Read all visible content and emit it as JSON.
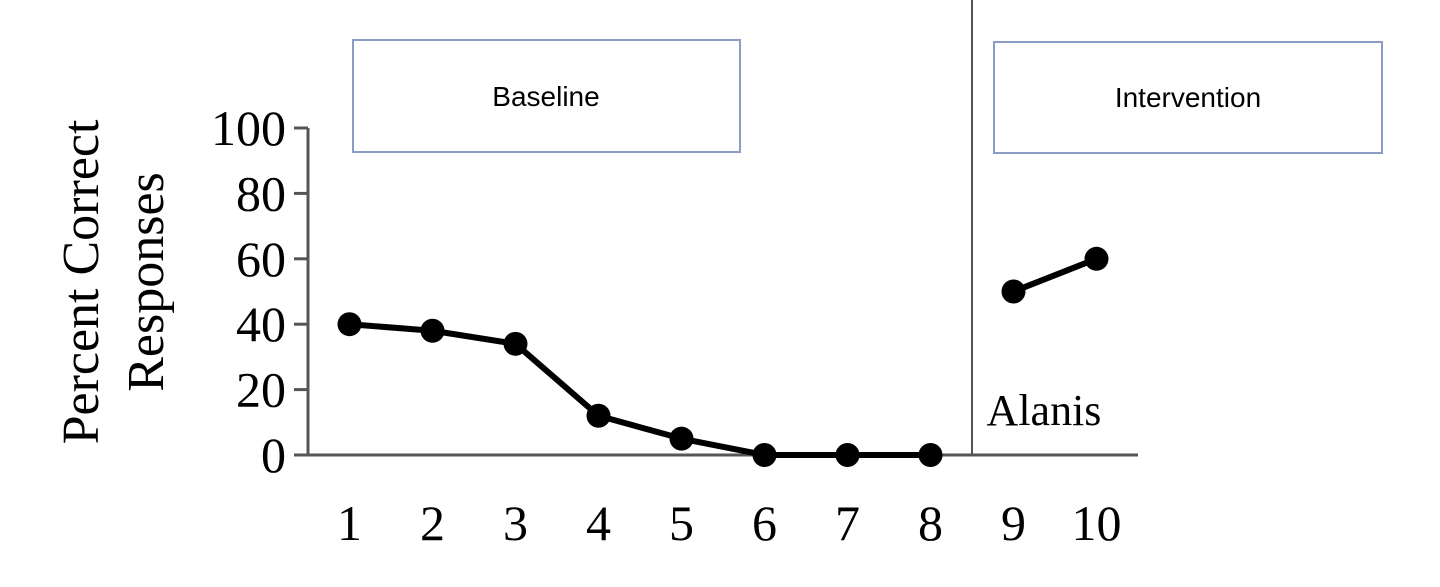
{
  "chart_data": {
    "type": "line",
    "ylabel_line1": "Percent Correct",
    "ylabel_line2": "Responses",
    "xlim": [
      0.5,
      10.5
    ],
    "ylim": [
      0,
      100
    ],
    "y_ticks": [
      0,
      20,
      40,
      60,
      80,
      100
    ],
    "x_ticks": [
      1,
      2,
      3,
      4,
      5,
      6,
      7,
      8,
      9,
      10
    ],
    "phase_change_after": 8.5,
    "phases": [
      {
        "label": "Baseline",
        "x": [
          1,
          2,
          3,
          4,
          5,
          6,
          7,
          8
        ],
        "y": [
          40,
          38,
          34,
          12,
          5,
          0,
          0,
          0
        ]
      },
      {
        "label": "Intervention",
        "x": [
          9,
          10
        ],
        "y": [
          50,
          60
        ]
      }
    ],
    "participant": "Alanis",
    "grid": false,
    "colors": {
      "line": "#000000",
      "axis": "#555555",
      "phase_box_border": "#8c9dc4"
    }
  }
}
